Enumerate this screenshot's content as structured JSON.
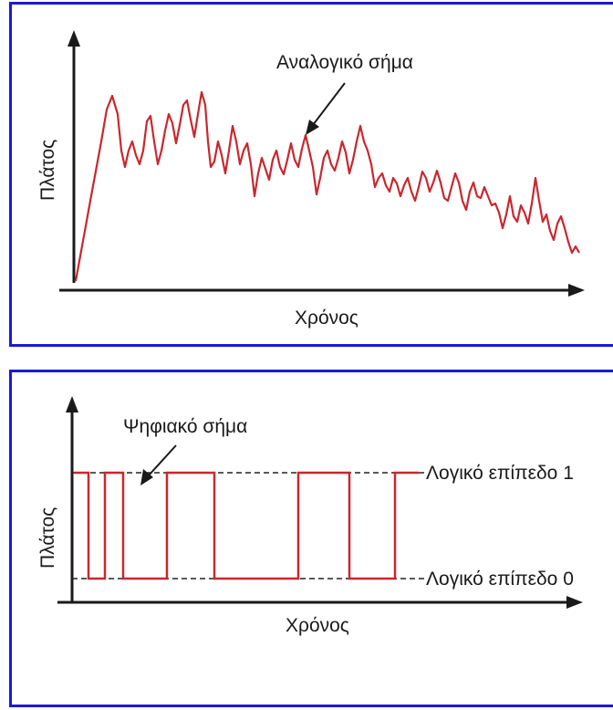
{
  "colors": {
    "frame": "#1a1ad6",
    "signal": "#c8282e",
    "axis": "#1a1a1a",
    "dash": "#222222"
  },
  "analog": {
    "signal_label": "Αναλογικό σήμα",
    "y_axis_label": "Πλάτος",
    "x_axis_label": "Χρόνος"
  },
  "digital": {
    "signal_label": "Ψηφιακό σήμα",
    "y_axis_label": "Πλάτος",
    "x_axis_label": "Χρόνος",
    "level1_label": "Λογικό επίπεδο 1",
    "level0_label": "Λογικό επίπεδο 0",
    "levels": [
      1,
      0,
      1,
      0,
      1,
      0,
      1,
      0,
      1
    ]
  }
}
